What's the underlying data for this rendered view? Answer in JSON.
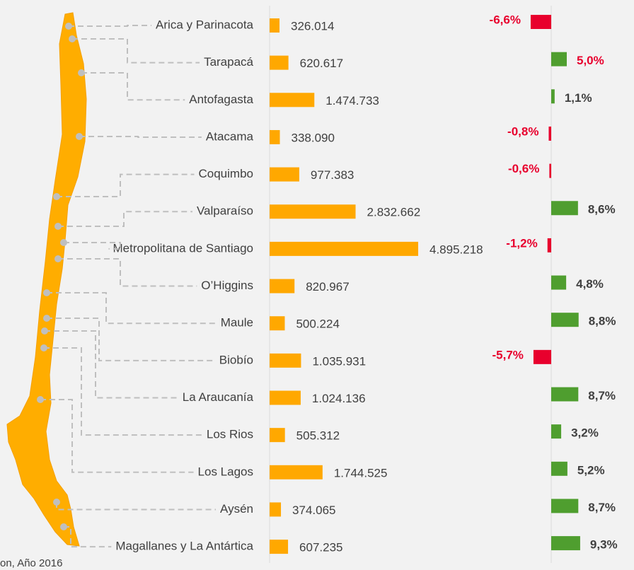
{
  "chart_data": [
    {
      "type": "bar",
      "categories": [
        "Arica y Parinacota",
        "Tarapacá",
        "Antofagasta",
        "Atacama",
        "Coquimbo",
        "Valparaíso",
        "Metropolitana de Santiago",
        "O’Higgins",
        "Maule",
        "Biobío",
        "La Araucanía",
        "Los Rios",
        "Los Lagos",
        "Aysén",
        "Magallanes y La Antártica"
      ],
      "values": [
        326014,
        620617,
        1474733,
        338090,
        977383,
        2832662,
        4895218,
        820967,
        500224,
        1035931,
        1024136,
        505312,
        1744525,
        374065,
        607235
      ],
      "value_labels": [
        "326.014",
        "620.617",
        "1.474.733",
        "338.090",
        "977.383",
        "2.832.662",
        "4.895.218",
        "820.967",
        "500.224",
        "1.035.931",
        "1.024.136",
        "505.312",
        "1.744.525",
        "374.065",
        "607.235"
      ],
      "color": "#ffa800"
    },
    {
      "type": "diverging-bar",
      "values": [
        -6.6,
        5.0,
        1.1,
        -0.8,
        -0.6,
        8.6,
        -1.2,
        4.8,
        8.8,
        -5.7,
        8.7,
        3.2,
        5.2,
        8.7,
        9.3
      ],
      "value_labels": [
        "-6,6%",
        "5,0%",
        "1,1%",
        "-0,8%",
        "-0,6%",
        "8,6%",
        "-1,2%",
        "4,8%",
        "8,8%",
        "-5,7%",
        "8,7%",
        "3,2%",
        "5,2%",
        "8,7%",
        "9,3%"
      ],
      "negative_color": "#e8002d",
      "positive_color": "#4f9e2f",
      "label_colors": [
        "#e8002d",
        "#e8002d",
        "#404040",
        "#e8002d",
        "#e8002d",
        "#404040",
        "#e8002d",
        "#404040",
        "#404040",
        "#e8002d",
        "#404040",
        "#404040",
        "#404040",
        "#404040",
        "#404040"
      ]
    }
  ],
  "footnote": "on, Año 2016"
}
